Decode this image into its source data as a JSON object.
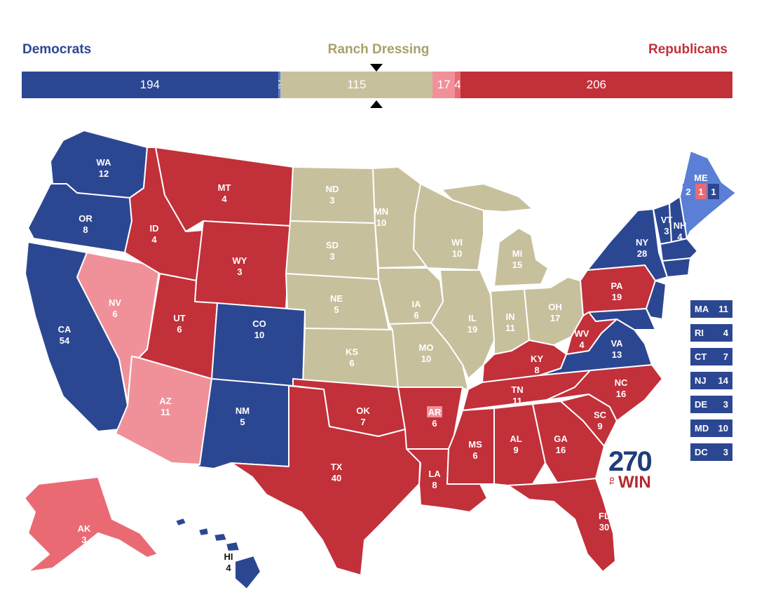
{
  "legend": {
    "left": "Democrats",
    "center": "Ranch Dressing",
    "right": "Republicans"
  },
  "colors": {
    "dem_safe": "#2c4792",
    "dem_lean": "#5b7fd6",
    "ranch": "#c7c09d",
    "rep_lean": "#f0919a",
    "rep_likely": "#ea6a74",
    "rep_safe": "#c2303a",
    "dem_label": "#2c4792",
    "ranch_label": "#a99f6b",
    "rep_label": "#c2303a"
  },
  "bar": {
    "segments": [
      {
        "label": "194",
        "value": 194,
        "color": "#2c4792"
      },
      {
        "label": "2",
        "value": 2,
        "color": "#5b7fd6"
      },
      {
        "label": "115",
        "value": 115,
        "color": "#c7c09d"
      },
      {
        "label": "17",
        "value": 17,
        "color": "#f0919a"
      },
      {
        "label": "4",
        "value": 4,
        "color": "#ea6a74"
      },
      {
        "label": "206",
        "value": 206,
        "color": "#c2303a"
      }
    ]
  },
  "states": {
    "WA": {
      "abbr": "WA",
      "ev": "12"
    },
    "OR": {
      "abbr": "OR",
      "ev": "8"
    },
    "CA": {
      "abbr": "CA",
      "ev": "54"
    },
    "NV": {
      "abbr": "NV",
      "ev": "6"
    },
    "ID": {
      "abbr": "ID",
      "ev": "4"
    },
    "MT": {
      "abbr": "MT",
      "ev": "4"
    },
    "WY": {
      "abbr": "WY",
      "ev": "3"
    },
    "UT": {
      "abbr": "UT",
      "ev": "6"
    },
    "AZ": {
      "abbr": "AZ",
      "ev": "11"
    },
    "CO": {
      "abbr": "CO",
      "ev": "10"
    },
    "NM": {
      "abbr": "NM",
      "ev": "5"
    },
    "ND": {
      "abbr": "ND",
      "ev": "3"
    },
    "SD": {
      "abbr": "SD",
      "ev": "3"
    },
    "NE": {
      "abbr": "NE",
      "ev": "5"
    },
    "KS": {
      "abbr": "KS",
      "ev": "6"
    },
    "OK": {
      "abbr": "OK",
      "ev": "7"
    },
    "TX": {
      "abbr": "TX",
      "ev": "40"
    },
    "MN": {
      "abbr": "MN",
      "ev": "10"
    },
    "IA": {
      "abbr": "IA",
      "ev": "6"
    },
    "MO": {
      "abbr": "MO",
      "ev": "10"
    },
    "AR": {
      "abbr": "AR",
      "ev": "6"
    },
    "LA": {
      "abbr": "LA",
      "ev": "8"
    },
    "WI": {
      "abbr": "WI",
      "ev": "10"
    },
    "IL": {
      "abbr": "IL",
      "ev": "19"
    },
    "MI": {
      "abbr": "MI",
      "ev": "15"
    },
    "IN": {
      "abbr": "IN",
      "ev": "11"
    },
    "OH": {
      "abbr": "OH",
      "ev": "17"
    },
    "KY": {
      "abbr": "KY",
      "ev": "8"
    },
    "TN": {
      "abbr": "TN",
      "ev": "11"
    },
    "MS": {
      "abbr": "MS",
      "ev": "6"
    },
    "AL": {
      "abbr": "AL",
      "ev": "9"
    },
    "GA": {
      "abbr": "GA",
      "ev": "16"
    },
    "FL": {
      "abbr": "FL",
      "ev": "30"
    },
    "SC": {
      "abbr": "SC",
      "ev": "9"
    },
    "NC": {
      "abbr": "NC",
      "ev": "16"
    },
    "VA": {
      "abbr": "VA",
      "ev": "13"
    },
    "WV": {
      "abbr": "WV",
      "ev": "4"
    },
    "PA": {
      "abbr": "PA",
      "ev": "19"
    },
    "NY": {
      "abbr": "NY",
      "ev": "28"
    },
    "VT": {
      "abbr": "VT",
      "ev": "3"
    },
    "NH": {
      "abbr": "NH",
      "ev": "4"
    },
    "ME": {
      "abbr": "ME",
      "ev_split": [
        "2",
        "1",
        "1"
      ]
    },
    "AK": {
      "abbr": "AK",
      "ev": "3"
    },
    "HI": {
      "abbr": "HI",
      "ev": "4"
    }
  },
  "small_states": [
    {
      "abbr": "MA",
      "ev": "11"
    },
    {
      "abbr": "RI",
      "ev": "4"
    },
    {
      "abbr": "CT",
      "ev": "7"
    },
    {
      "abbr": "NJ",
      "ev": "14"
    },
    {
      "abbr": "DE",
      "ev": "3"
    },
    {
      "abbr": "MD",
      "ev": "10"
    },
    {
      "abbr": "DC",
      "ev": "3"
    }
  ],
  "logo": {
    "number": "270",
    "to": "TO",
    "win": "WIN"
  }
}
